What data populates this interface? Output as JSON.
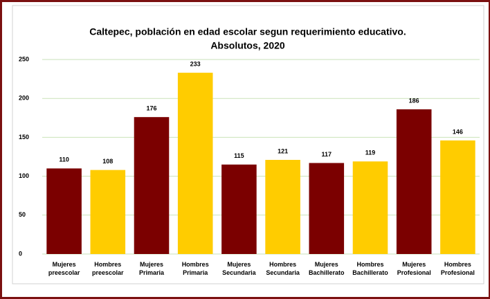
{
  "chart_data": {
    "type": "bar",
    "title": [
      "Caltepec, población en edad escolar segun requerimiento educativo.",
      "Absolutos, 2020"
    ],
    "categories": [
      "Mujeres preescolar",
      "Hombres preescolar",
      "Mujeres Primaria",
      "Hombres Primaria",
      "Mujeres Secundaria",
      "Hombres Secundaria",
      "Mujeres Bachillerato",
      "Hombres Bachillerato",
      "Mujeres Profesional",
      "Hombres Profesional"
    ],
    "values": [
      110,
      108,
      176,
      233,
      115,
      121,
      117,
      119,
      186,
      146
    ],
    "colors": [
      "#7b0000",
      "#ffcc00"
    ],
    "ylim": [
      0,
      250
    ],
    "yticks": [
      0,
      50,
      100,
      150,
      200,
      250
    ],
    "grid": true
  }
}
